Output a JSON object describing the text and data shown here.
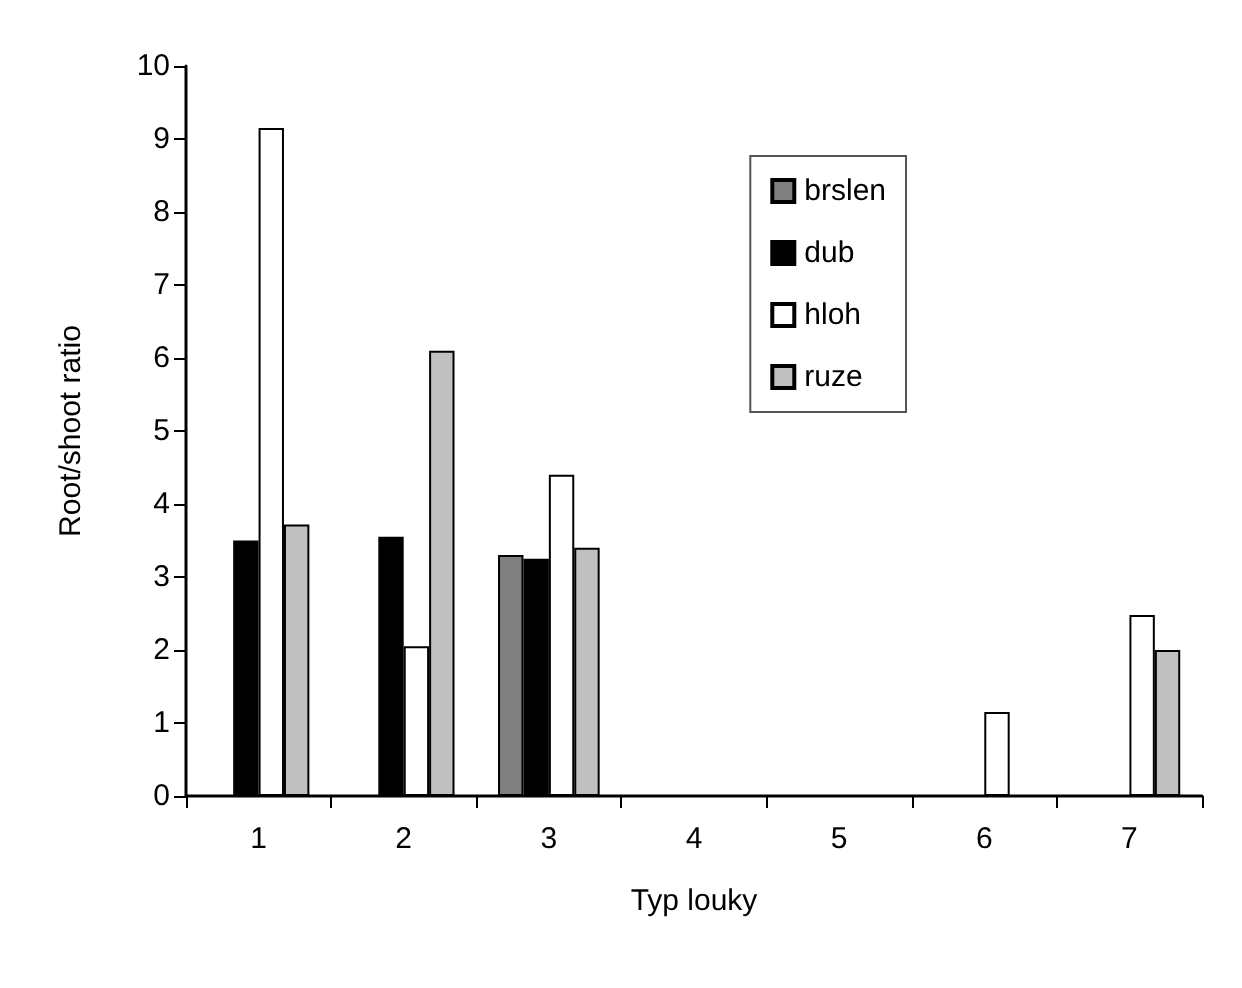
{
  "chart_data": {
    "type": "bar",
    "xlabel": "Typ louky",
    "ylabel": "Root/shoot ratio",
    "categories": [
      "1",
      "2",
      "3",
      "4",
      "5",
      "6",
      "7"
    ],
    "series": [
      {
        "name": "brslen",
        "color": "#808080",
        "values": [
          null,
          null,
          3.3,
          null,
          null,
          null,
          null
        ]
      },
      {
        "name": "dub",
        "color": "#000000",
        "values": [
          3.5,
          3.55,
          3.25,
          null,
          null,
          null,
          null
        ]
      },
      {
        "name": "hloh",
        "color": "#ffffff",
        "values": [
          9.15,
          2.05,
          4.4,
          null,
          null,
          1.15,
          2.48
        ]
      },
      {
        "name": "ruze",
        "color": "#c0c0c0",
        "values": [
          3.72,
          6.1,
          3.4,
          null,
          null,
          null,
          2.0
        ]
      }
    ],
    "ylim": [
      0,
      10
    ],
    "yticks": [
      0,
      1,
      2,
      3,
      4,
      5,
      6,
      7,
      8,
      9,
      10
    ],
    "grid": false,
    "legend": "top right"
  }
}
